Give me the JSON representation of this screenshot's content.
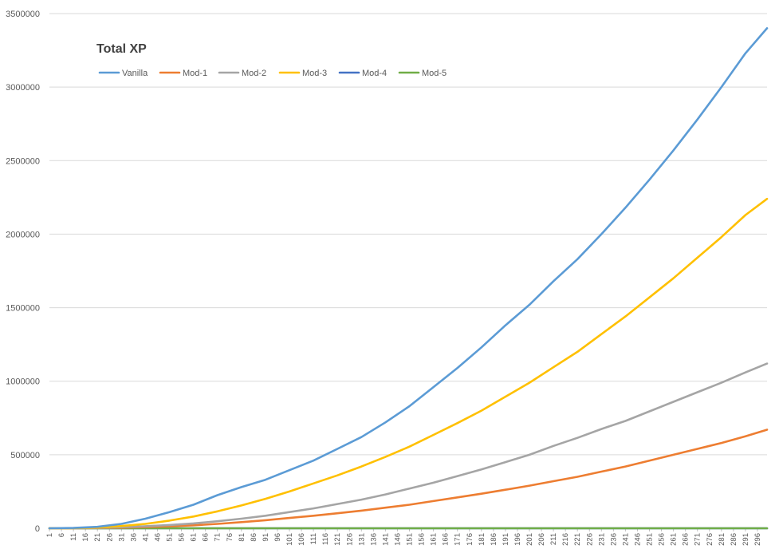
{
  "chart_data": {
    "type": "line",
    "title": "Total XP",
    "xlabel": "",
    "ylabel": "",
    "x_range": [
      1,
      300
    ],
    "x_tick_labels": [
      "1",
      "6",
      "11",
      "16",
      "21",
      "26",
      "31",
      "36",
      "41",
      "46",
      "51",
      "56",
      "61",
      "66",
      "71",
      "76",
      "81",
      "86",
      "91",
      "96",
      "101",
      "106",
      "111",
      "116",
      "121",
      "126",
      "131",
      "136",
      "141",
      "146",
      "151",
      "156",
      "161",
      "166",
      "171",
      "176",
      "181",
      "186",
      "191",
      "196",
      "201",
      "206",
      "211",
      "216",
      "221",
      "226",
      "231",
      "236",
      "241",
      "246",
      "251",
      "256",
      "261",
      "266",
      "271",
      "276",
      "281",
      "286",
      "291",
      "296"
    ],
    "ylim": [
      0,
      3500000
    ],
    "y_ticks": [
      "0",
      "500000",
      "1000000",
      "1500000",
      "2000000",
      "2500000",
      "3000000",
      "3500000"
    ],
    "y_tick_values": [
      0,
      500000,
      1000000,
      1500000,
      2000000,
      2500000,
      3000000,
      3500000
    ],
    "grid": true,
    "legend_position": "top-left",
    "series": [
      {
        "name": "Vanilla",
        "color": "#5b9bd5",
        "points": [
          [
            1,
            0
          ],
          [
            11,
            2000
          ],
          [
            21,
            10000
          ],
          [
            31,
            30000
          ],
          [
            41,
            65000
          ],
          [
            51,
            110000
          ],
          [
            61,
            160000
          ],
          [
            71,
            225000
          ],
          [
            81,
            280000
          ],
          [
            91,
            330000
          ],
          [
            101,
            395000
          ],
          [
            111,
            460000
          ],
          [
            121,
            540000
          ],
          [
            131,
            620000
          ],
          [
            141,
            720000
          ],
          [
            151,
            830000
          ],
          [
            161,
            960000
          ],
          [
            171,
            1090000
          ],
          [
            181,
            1230000
          ],
          [
            191,
            1380000
          ],
          [
            201,
            1520000
          ],
          [
            211,
            1680000
          ],
          [
            221,
            1830000
          ],
          [
            231,
            2000000
          ],
          [
            241,
            2180000
          ],
          [
            251,
            2370000
          ],
          [
            261,
            2570000
          ],
          [
            271,
            2780000
          ],
          [
            281,
            3000000
          ],
          [
            291,
            3230000
          ],
          [
            300,
            3400000
          ]
        ]
      },
      {
        "name": "Mod-1",
        "color": "#ed7d31",
        "points": [
          [
            1,
            0
          ],
          [
            11,
            300
          ],
          [
            21,
            1500
          ],
          [
            31,
            4000
          ],
          [
            41,
            8000
          ],
          [
            51,
            13000
          ],
          [
            61,
            20000
          ],
          [
            71,
            30000
          ],
          [
            81,
            42000
          ],
          [
            91,
            55000
          ],
          [
            101,
            70000
          ],
          [
            111,
            85000
          ],
          [
            121,
            102000
          ],
          [
            131,
            120000
          ],
          [
            141,
            140000
          ],
          [
            151,
            160000
          ],
          [
            161,
            185000
          ],
          [
            171,
            210000
          ],
          [
            181,
            235000
          ],
          [
            191,
            262000
          ],
          [
            201,
            290000
          ],
          [
            211,
            320000
          ],
          [
            221,
            350000
          ],
          [
            231,
            385000
          ],
          [
            241,
            420000
          ],
          [
            251,
            460000
          ],
          [
            261,
            500000
          ],
          [
            271,
            540000
          ],
          [
            281,
            580000
          ],
          [
            291,
            625000
          ],
          [
            300,
            670000
          ]
        ]
      },
      {
        "name": "Mod-2",
        "color": "#a5a5a5",
        "points": [
          [
            1,
            0
          ],
          [
            11,
            500
          ],
          [
            21,
            2500
          ],
          [
            31,
            7000
          ],
          [
            41,
            14000
          ],
          [
            51,
            22000
          ],
          [
            61,
            33000
          ],
          [
            71,
            48000
          ],
          [
            81,
            65000
          ],
          [
            91,
            85000
          ],
          [
            101,
            110000
          ],
          [
            111,
            135000
          ],
          [
            121,
            165000
          ],
          [
            131,
            195000
          ],
          [
            141,
            230000
          ],
          [
            151,
            270000
          ],
          [
            161,
            310000
          ],
          [
            171,
            355000
          ],
          [
            181,
            400000
          ],
          [
            191,
            450000
          ],
          [
            201,
            500000
          ],
          [
            211,
            560000
          ],
          [
            221,
            615000
          ],
          [
            231,
            675000
          ],
          [
            241,
            730000
          ],
          [
            251,
            795000
          ],
          [
            261,
            860000
          ],
          [
            271,
            925000
          ],
          [
            281,
            990000
          ],
          [
            291,
            1060000
          ],
          [
            300,
            1120000
          ]
        ]
      },
      {
        "name": "Mod-3",
        "color": "#ffc000",
        "points": [
          [
            1,
            0
          ],
          [
            11,
            1000
          ],
          [
            21,
            5000
          ],
          [
            31,
            15000
          ],
          [
            41,
            30000
          ],
          [
            51,
            52000
          ],
          [
            61,
            80000
          ],
          [
            71,
            115000
          ],
          [
            81,
            155000
          ],
          [
            91,
            200000
          ],
          [
            101,
            250000
          ],
          [
            111,
            305000
          ],
          [
            121,
            360000
          ],
          [
            131,
            420000
          ],
          [
            141,
            485000
          ],
          [
            151,
            555000
          ],
          [
            161,
            635000
          ],
          [
            171,
            715000
          ],
          [
            181,
            800000
          ],
          [
            191,
            895000
          ],
          [
            201,
            990000
          ],
          [
            211,
            1095000
          ],
          [
            221,
            1200000
          ],
          [
            231,
            1320000
          ],
          [
            241,
            1440000
          ],
          [
            251,
            1570000
          ],
          [
            261,
            1700000
          ],
          [
            271,
            1840000
          ],
          [
            281,
            1980000
          ],
          [
            291,
            2130000
          ],
          [
            300,
            2240000
          ]
        ]
      },
      {
        "name": "Mod-4",
        "color": "#4472c4",
        "points": [
          [
            1,
            0
          ],
          [
            100,
            0
          ],
          [
            200,
            0
          ],
          [
            300,
            0
          ]
        ]
      },
      {
        "name": "Mod-5",
        "color": "#70ad47",
        "points": [
          [
            1,
            0
          ],
          [
            100,
            0
          ],
          [
            200,
            0
          ],
          [
            300,
            0
          ]
        ]
      }
    ]
  }
}
